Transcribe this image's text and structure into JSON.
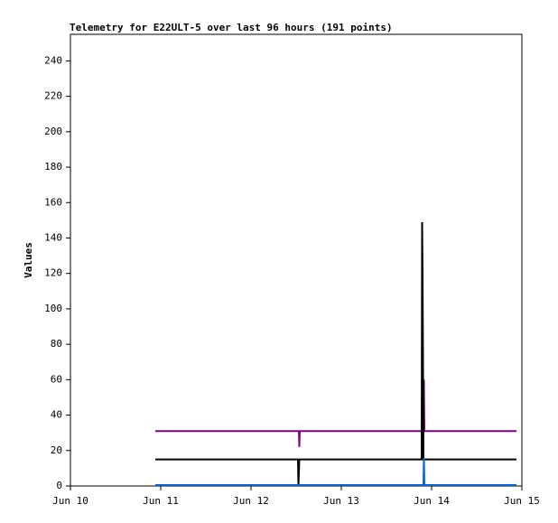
{
  "chart_data": {
    "type": "line",
    "title": "Telemetry for E22ULT-5 over last 96 hours (191 points)",
    "y_label": "Values",
    "xlim": [
      10,
      15
    ],
    "xticks": [
      {
        "value": 10,
        "label": "Jun 10"
      },
      {
        "value": 11,
        "label": "Jun 11"
      },
      {
        "value": 12,
        "label": "Jun 12"
      },
      {
        "value": 13,
        "label": "Jun 13"
      },
      {
        "value": 14,
        "label": "Jun 14"
      },
      {
        "value": 15,
        "label": "Jun 15"
      }
    ],
    "ylim": [
      0,
      255
    ],
    "yticks": [
      0,
      20,
      40,
      60,
      80,
      100,
      120,
      140,
      160,
      180,
      200,
      220,
      240
    ],
    "grid": false,
    "series": [
      {
        "color": "#800080",
        "x": [
          10.94,
          12.53,
          12.535,
          12.54,
          13.91,
          13.915,
          13.92,
          14.94
        ],
        "values": [
          31,
          31,
          22,
          31,
          31,
          60,
          31,
          31
        ]
      },
      {
        "color": "#000000",
        "x": [
          10.94,
          12.52,
          12.525,
          12.535,
          13.89,
          13.895,
          13.9,
          13.91,
          14.94
        ],
        "values": [
          15,
          15,
          0,
          15,
          15,
          149,
          120,
          15,
          15
        ]
      },
      {
        "color": "#0066cc",
        "x": [
          10.94,
          13.91,
          13.915,
          13.92,
          14.94
        ],
        "values": [
          0.5,
          0.5,
          16,
          0.5,
          0.5
        ]
      }
    ]
  }
}
